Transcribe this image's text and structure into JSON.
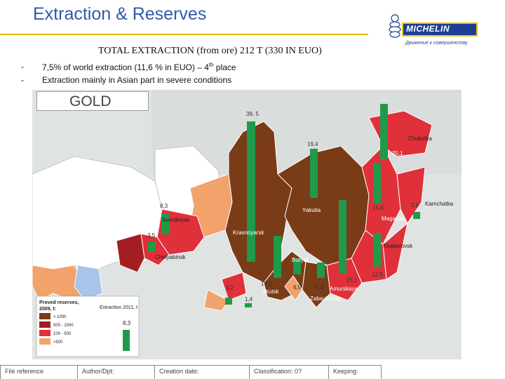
{
  "header": {
    "title": "Extraction & Reserves",
    "brand": "MICHELIN",
    "tagline": "Движение к совершенству"
  },
  "subtitle": "TOTAL EXTRACTION (from ore) 212 T (330 IN EUO)",
  "bullets": [
    {
      "dash": "-",
      "text_pre": "7,5% of world extraction (11,6 % in EUO) – 4",
      "sup": "th",
      "text_post": " place"
    },
    {
      "dash": "-",
      "text_pre": "Extraction mainly in Asian part in severe conditions",
      "sup": "",
      "text_post": ""
    }
  ],
  "map": {
    "panel_title": "GOLD",
    "regions": {
      "chukotka": "Chukotka",
      "kamchatka": "Kamchatka",
      "magadan": "Magadan",
      "khabarovsk": "Khabarovsk",
      "yakutia": "Yakutia",
      "krasnoyarsk": "Krasnoyarsk",
      "sverdlovsk": "Sverdlovsk",
      "chelyabinsk": "Chelyabinsk",
      "buryat": "Buryat",
      "irkutsk": "Irkutsk",
      "amurskaya": "Amurskaya",
      "zabaykalsky": "Zabaykalsky"
    },
    "values": {
      "krasnoyarsk": "39, 5",
      "yakutia": "19,4",
      "chukotka": "20,1",
      "magadan": "15,8",
      "kamchatka": "2,8",
      "sverdlovsk": "8,3",
      "chelyabinsk": "3,5",
      "khabarovsk": "12,5",
      "amurskaya": "25,1",
      "irkutsk": "17,0",
      "buryat": "6,5",
      "zabaykalsky": "6,3",
      "altai": "3,2",
      "tuva": "1,4"
    },
    "legend": {
      "title_line1": "Proved reserves,",
      "title_line2": "2009, t:",
      "items": [
        {
          "label": "> 1000",
          "color": "#7a3b17"
        },
        {
          "label": "500 - 1000",
          "color": "#a31e22"
        },
        {
          "label": "100 - 500",
          "color": "#e0303a"
        },
        {
          "label": "<500",
          "color": "#f2a26b"
        }
      ],
      "bar_title": "Extraction 2011, t",
      "bar_value": "8,3",
      "bar_color": "#1f9a4a"
    }
  },
  "footer": {
    "file_reference": "File reference",
    "author": "Author/Dpt:",
    "creation_date": "Creation date:",
    "classification": "Classification: 0?",
    "keeping": "Keeping:"
  }
}
